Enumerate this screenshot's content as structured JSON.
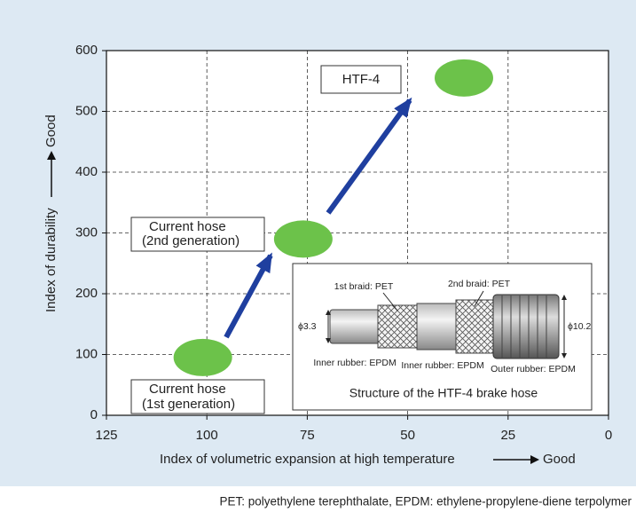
{
  "chart_data": {
    "type": "scatter",
    "x": [
      101,
      76,
      36
    ],
    "values": [
      95,
      290,
      555
    ],
    "color": "#6cc24a",
    "xlim": [
      125,
      0
    ],
    "ylim": [
      0,
      600
    ],
    "xticks": [
      125,
      100,
      75,
      50,
      25,
      0
    ],
    "yticks": [
      0,
      100,
      200,
      300,
      400,
      500,
      600
    ],
    "grid": true,
    "x_label": "Index of volumetric expansion at high temperature",
    "x_label_good": "Good",
    "y_label": "Index of durability",
    "y_label_good": "Good",
    "point_labels": [
      [
        "Current hose",
        "(1st generation)"
      ],
      [
        "Current hose",
        "(2nd generation)"
      ],
      [
        "HTF-4"
      ]
    ],
    "inset": {
      "title": "Structure of the HTF-4 brake hose",
      "braid1": "1st braid: PET",
      "braid2": "2nd braid: PET",
      "inner_diameter": "ϕ3.3",
      "outer_diameter": "ϕ10.2",
      "inner_rubber_1": "Inner rubber: EPDM",
      "inner_rubber_2": "Inner rubber: EPDM",
      "outer_rubber": "Outer rubber: EPDM"
    },
    "footnote": "PET: polyethylene terephthalate, EPDM: ethylene-propylene-diene terpolymer"
  }
}
